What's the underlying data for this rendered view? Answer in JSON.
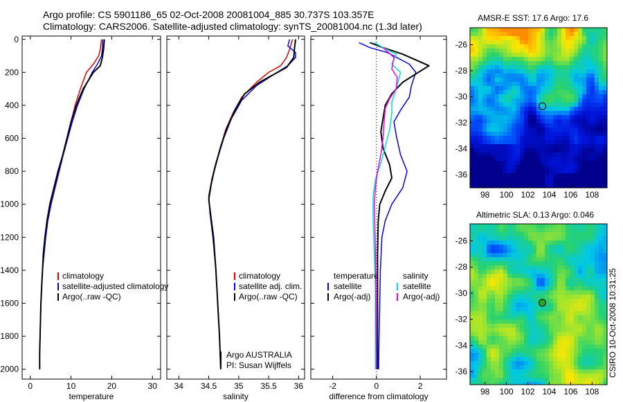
{
  "titles": {
    "line1": "Argo profile: CS 5901186_65 02-Oct-2008 20081004_885 30.737S 103.357E",
    "line2": "Climatology: CARS2006. Satellite-adjusted climatology: synTS_20081004.nc (1.3d later)"
  },
  "colors": {
    "climatology": "#e00000",
    "satellite": "#0000ee",
    "argo": "#000000",
    "salinity_satellite": "#00dddd",
    "salinity_argo": "#ee00ee"
  },
  "chart_data": [
    {
      "type": "line",
      "xlabel": "temperature",
      "ylabel": "",
      "xlim": [
        -2,
        32
      ],
      "ylim": [
        2060,
        -20
      ],
      "y_reversed": true,
      "xticks": [
        0,
        10,
        20,
        30
      ],
      "yticks": [
        0,
        200,
        400,
        600,
        800,
        1000,
        1200,
        1400,
        1600,
        1800,
        2000
      ],
      "legend": [
        "climatology",
        "satellite-adjusted climatology",
        "Argo(..raw -QC)"
      ],
      "legend_position": "bottom-right",
      "series": [
        {
          "name": "climatology",
          "color_key": "climatology",
          "points": [
            [
              17.5,
              0
            ],
            [
              17.2,
              60
            ],
            [
              16.8,
              100
            ],
            [
              15.5,
              150
            ],
            [
              13.8,
              200
            ],
            [
              12.3,
              300
            ],
            [
              11,
              400
            ],
            [
              10,
              500
            ],
            [
              9,
              600
            ],
            [
              8,
              700
            ],
            [
              7,
              800
            ],
            [
              6,
              900
            ],
            [
              5,
              1000
            ],
            [
              4.2,
              1100
            ],
            [
              3.7,
              1200
            ],
            [
              3.3,
              1300
            ],
            [
              3,
              1400
            ],
            [
              2.8,
              1500
            ],
            [
              2.6,
              1600
            ],
            [
              2.5,
              1700
            ],
            [
              2.4,
              1800
            ],
            [
              2.3,
              1900
            ],
            [
              2.3,
              2000
            ]
          ]
        },
        {
          "name": "satellite-adjusted climatology",
          "color_key": "satellite",
          "points": [
            [
              17.8,
              0
            ],
            [
              17.7,
              60
            ],
            [
              17.5,
              100
            ],
            [
              16.5,
              150
            ],
            [
              15.2,
              200
            ],
            [
              13.2,
              300
            ],
            [
              11.6,
              400
            ],
            [
              10.3,
              500
            ],
            [
              9.2,
              600
            ],
            [
              8.1,
              700
            ],
            [
              7.1,
              800
            ],
            [
              6.1,
              900
            ],
            [
              5.1,
              1000
            ],
            [
              4.3,
              1100
            ],
            [
              3.8,
              1200
            ],
            [
              3.4,
              1300
            ],
            [
              3,
              1400
            ],
            [
              2.8,
              1500
            ],
            [
              2.6,
              1600
            ],
            [
              2.5,
              1700
            ],
            [
              2.4,
              1800
            ],
            [
              2.3,
              1900
            ],
            [
              2.3,
              2000
            ]
          ]
        },
        {
          "name": "Argo(..raw -QC)",
          "color_key": "argo",
          "points": [
            [
              18.2,
              0
            ],
            [
              18,
              60
            ],
            [
              17.7,
              110
            ],
            [
              17.2,
              160
            ],
            [
              15.5,
              200
            ],
            [
              13,
              300
            ],
            [
              11.3,
              400
            ],
            [
              10,
              500
            ],
            [
              9,
              600
            ],
            [
              8,
              700
            ],
            [
              6.8,
              800
            ],
            [
              5.8,
              900
            ],
            [
              4.8,
              1000
            ],
            [
              4.1,
              1100
            ],
            [
              3.6,
              1200
            ],
            [
              3.2,
              1300
            ],
            [
              3,
              1400
            ],
            [
              2.8,
              1500
            ],
            [
              2.6,
              1600
            ],
            [
              2.5,
              1700
            ],
            [
              2.4,
              1800
            ],
            [
              2.3,
              1900
            ],
            [
              2.3,
              2000
            ]
          ]
        }
      ]
    },
    {
      "type": "line",
      "xlabel": "salinity",
      "ylabel": "",
      "xlim": [
        33.8,
        36.1
      ],
      "ylim": [
        2060,
        -20
      ],
      "y_reversed": true,
      "xticks": [
        34,
        34.5,
        35,
        35.5,
        36
      ],
      "yticks": [
        0,
        200,
        400,
        600,
        800,
        1000,
        1200,
        1400,
        1600,
        1800,
        2000
      ],
      "legend": [
        "climatology",
        "satellite adj. clim.",
        "Argo(..raw -QC)"
      ],
      "legend_position": "bottom-right",
      "annotation": [
        "Argo AUSTRALIA",
        "PI: Susan Wijffels"
      ],
      "series": [
        {
          "name": "climatology",
          "color_key": "climatology",
          "points": [
            [
              35.9,
              0
            ],
            [
              35.85,
              60
            ],
            [
              35.8,
              110
            ],
            [
              35.7,
              160
            ],
            [
              35.5,
              200
            ],
            [
              35.3,
              260
            ],
            [
              35.05,
              350
            ],
            [
              34.9,
              450
            ],
            [
              34.78,
              550
            ],
            [
              34.7,
              650
            ],
            [
              34.62,
              750
            ],
            [
              34.55,
              850
            ],
            [
              34.5,
              950
            ],
            [
              34.52,
              1050
            ],
            [
              34.57,
              1200
            ],
            [
              34.62,
              1400
            ],
            [
              34.65,
              1600
            ],
            [
              34.68,
              1800
            ],
            [
              34.7,
              2000
            ]
          ]
        },
        {
          "name": "satellite adj. clim.",
          "color_key": "satellite",
          "points": [
            [
              35.85,
              0
            ],
            [
              35.82,
              40
            ],
            [
              35.95,
              80
            ],
            [
              35.95,
              110
            ],
            [
              35.82,
              160
            ],
            [
              35.6,
              210
            ],
            [
              35.3,
              280
            ],
            [
              35.05,
              370
            ],
            [
              34.88,
              480
            ],
            [
              34.75,
              600
            ],
            [
              34.65,
              720
            ],
            [
              34.57,
              830
            ],
            [
              34.5,
              950
            ],
            [
              34.52,
              1050
            ],
            [
              34.57,
              1200
            ],
            [
              34.62,
              1400
            ],
            [
              34.65,
              1600
            ],
            [
              34.68,
              1800
            ],
            [
              34.7,
              2000
            ]
          ]
        },
        {
          "name": "Argo(..raw -QC)",
          "color_key": "argo",
          "points": [
            [
              35.95,
              0
            ],
            [
              35.93,
              60
            ],
            [
              35.92,
              110
            ],
            [
              35.8,
              170
            ],
            [
              35.6,
              210
            ],
            [
              35.35,
              260
            ],
            [
              35.1,
              330
            ],
            [
              34.95,
              420
            ],
            [
              34.8,
              540
            ],
            [
              34.7,
              650
            ],
            [
              34.6,
              780
            ],
            [
              34.54,
              880
            ],
            [
              34.5,
              970
            ],
            [
              34.53,
              1060
            ],
            [
              34.58,
              1200
            ],
            [
              34.62,
              1400
            ],
            [
              34.65,
              1600
            ],
            [
              34.68,
              1800
            ],
            [
              34.7,
              2000
            ]
          ]
        }
      ]
    },
    {
      "type": "line",
      "xlabel": "difference from climatology",
      "ylabel": "",
      "xlim": [
        -3,
        3.2
      ],
      "ylim": [
        2060,
        -20
      ],
      "y_reversed": true,
      "xticks": [
        -2,
        0,
        2
      ],
      "yticks": [
        0,
        200,
        400,
        600,
        800,
        1000,
        1200,
        1400,
        1600,
        1800,
        2000
      ],
      "zero_line": "dotted",
      "legend_groups": [
        {
          "title": "temperature",
          "items": [
            "satellite",
            "Argo(-adj)"
          ]
        },
        {
          "title": "salinity",
          "items": [
            "satellite",
            "Argo(-adj)"
          ]
        }
      ],
      "legend_position": "bottom",
      "series": [
        {
          "name": "temperature satellite",
          "color_key": "satellite",
          "points": [
            [
              -0.8,
              20
            ],
            [
              -0.3,
              50
            ],
            [
              0.5,
              80
            ],
            [
              1.5,
              150
            ],
            [
              1.8,
              200
            ],
            [
              1.6,
              280
            ],
            [
              1.5,
              350
            ],
            [
              1.1,
              430
            ],
            [
              0.8,
              500
            ],
            [
              0.9,
              580
            ],
            [
              1.1,
              700
            ],
            [
              1.4,
              800
            ],
            [
              1.2,
              900
            ],
            [
              0.7,
              1000
            ],
            [
              0.4,
              1100
            ],
            [
              0.25,
              1200
            ],
            [
              0.18,
              1400
            ],
            [
              0.15,
              1600
            ],
            [
              0.12,
              1800
            ],
            [
              0.1,
              2000
            ]
          ]
        },
        {
          "name": "temperature Argo(-adj)",
          "color_key": "argo",
          "points": [
            [
              -0.3,
              20
            ],
            [
              0.3,
              50
            ],
            [
              1.2,
              90
            ],
            [
              2.4,
              160
            ],
            [
              1.8,
              210
            ],
            [
              1.2,
              260
            ],
            [
              0.7,
              330
            ],
            [
              0.4,
              400
            ],
            [
              0.3,
              480
            ],
            [
              0.2,
              560
            ],
            [
              0.3,
              660
            ],
            [
              0.6,
              760
            ],
            [
              0.7,
              840
            ],
            [
              0.4,
              920
            ],
            [
              0.15,
              1000
            ],
            [
              0.08,
              1100
            ],
            [
              0.05,
              1300
            ],
            [
              0.05,
              1500
            ],
            [
              0.05,
              1700
            ],
            [
              0.05,
              1900
            ],
            [
              0.05,
              2000
            ]
          ]
        },
        {
          "name": "salinity satellite",
          "color_key": "salinity_satellite",
          "points": [
            [
              -0.1,
              20
            ],
            [
              0.3,
              50
            ],
            [
              0.9,
              90
            ],
            [
              0.7,
              150
            ],
            [
              1.1,
              200
            ],
            [
              1.0,
              250
            ],
            [
              0.9,
              300
            ],
            [
              0.7,
              380
            ],
            [
              0.7,
              450
            ],
            [
              0.6,
              550
            ],
            [
              0.4,
              650
            ],
            [
              0.2,
              750
            ],
            [
              -0.05,
              850
            ],
            [
              -0.15,
              950
            ],
            [
              -0.15,
              1100
            ],
            [
              -0.1,
              1300
            ],
            [
              -0.05,
              1500
            ],
            [
              -0.05,
              1700
            ],
            [
              -0.05,
              1900
            ],
            [
              -0.05,
              2000
            ]
          ]
        },
        {
          "name": "salinity Argo(-adj)",
          "color_key": "salinity_argo",
          "points": [
            [
              0.3,
              50
            ],
            [
              0.8,
              110
            ],
            [
              0.7,
              180
            ],
            [
              0.95,
              230
            ],
            [
              0.9,
              300
            ],
            [
              0.6,
              360
            ],
            [
              0.4,
              420
            ],
            [
              0.35,
              500
            ],
            [
              0.3,
              600
            ],
            [
              0.2,
              700
            ],
            [
              0.05,
              800
            ],
            [
              -0.05,
              900
            ],
            [
              -0.1,
              1000
            ],
            [
              -0.08,
              1100
            ],
            [
              -0.05,
              1300
            ],
            [
              -0.03,
              1500
            ],
            [
              -0.02,
              1700
            ],
            [
              0,
              1900
            ],
            [
              0,
              2000
            ]
          ]
        }
      ]
    },
    {
      "type": "heatmap",
      "title": "AMSR-E SST: 17.6 Argo: 17.6",
      "xlim": [
        96.6,
        109.4
      ],
      "ylim": [
        -37,
        -24.7
      ],
      "xticks": [
        98,
        100,
        102,
        104,
        106,
        108
      ],
      "yticks": [
        -26,
        -28,
        -30,
        -32,
        -34,
        -36
      ],
      "marker": {
        "lon": 103.357,
        "lat": -30.737
      },
      "marker_color": "#000000"
    },
    {
      "type": "heatmap",
      "title": "Altimetric SLA: 0.13 Argo: 0.046",
      "xlim": [
        96.6,
        109.4
      ],
      "ylim": [
        -37,
        -24.7
      ],
      "xticks": [
        98,
        100,
        102,
        104,
        106,
        108
      ],
      "yticks": [
        -26,
        -28,
        -30,
        -32,
        -34,
        -36
      ],
      "marker": {
        "lon": 103.357,
        "lat": -30.737
      },
      "marker_color": "#22aa22",
      "side_text": "CSIRO 10-Oct-2008 10:31:25"
    }
  ]
}
